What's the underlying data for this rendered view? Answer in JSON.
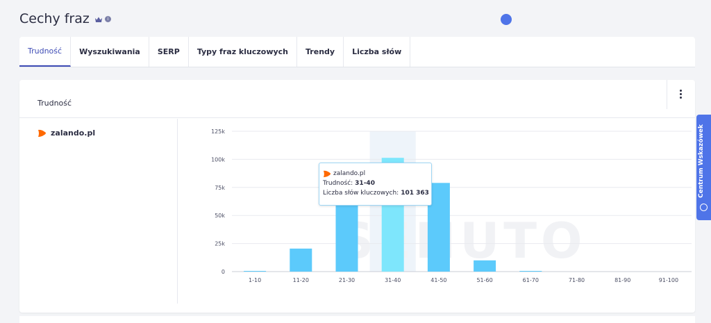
{
  "page": {
    "title": "Cechy fraz",
    "crown_icon": "crown-icon",
    "info_icon": "info-icon"
  },
  "tabs": [
    {
      "label": "Trudność",
      "active": true
    },
    {
      "label": "Wyszukiwania",
      "active": false
    },
    {
      "label": "SERP",
      "active": false
    },
    {
      "label": "Typy fraz kluczowych",
      "active": false
    },
    {
      "label": "Trendy",
      "active": false
    },
    {
      "label": "Liczba słów",
      "active": false
    }
  ],
  "card": {
    "title": "Trudność",
    "menu_icon": "kebab-menu-icon"
  },
  "domain": {
    "label": "zalando.pl",
    "logo_color": "#ff6900"
  },
  "side_tab": {
    "label": "Centrum Wskazówek",
    "icon": "info-circle-icon"
  },
  "watermark": "SENUTO",
  "tooltip": {
    "domain": "zalando.pl",
    "difficulty_label": "Trudność:",
    "difficulty_value": "31-40",
    "keywords_label": "Liczba słów kluczowych:",
    "keywords_value": "101 363"
  },
  "colors": {
    "accent": "#3d4bb5",
    "bar": "#5ccafb",
    "bar_highlight": "#7ee6fc",
    "highlight_band": "#eef4fa",
    "side_tab": "#4f74e8"
  },
  "chart_data": {
    "type": "bar",
    "title": "",
    "xlabel": "",
    "ylabel": "",
    "categories": [
      "1-10",
      "11-20",
      "21-30",
      "31-40",
      "41-50",
      "51-60",
      "61-70",
      "71-80",
      "81-90",
      "91-100"
    ],
    "values": [
      500,
      20500,
      79000,
      101363,
      79000,
      10000,
      600,
      0,
      0,
      0
    ],
    "ylim": [
      0,
      125000
    ],
    "yticks": [
      0,
      25000,
      50000,
      75000,
      100000,
      125000
    ],
    "ytick_labels": [
      "0",
      "25k",
      "50k",
      "75k",
      "100k",
      "125k"
    ],
    "highlight_index": 3,
    "grid": true,
    "legend": "none"
  }
}
